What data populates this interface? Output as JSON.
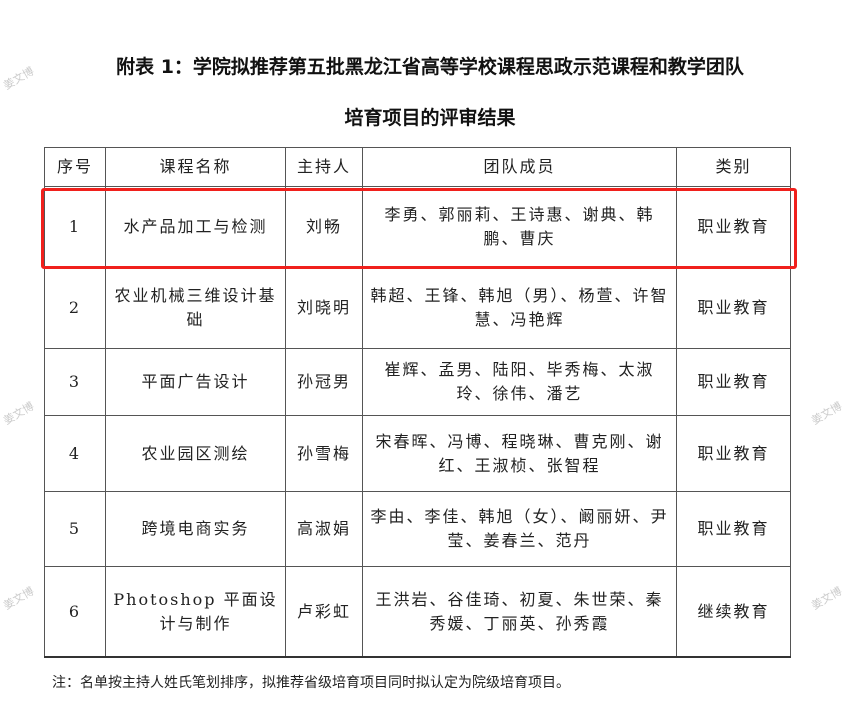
{
  "title_line1": "附表 1：学院拟推荐第五批黑龙江省高等学校课程思政示范课程和教学团队",
  "title_line2": "培育项目的评审结果",
  "table": {
    "headers": [
      "序号",
      "课程名称",
      "主持人",
      "团队成员",
      "类别"
    ],
    "rows": [
      {
        "no": "1",
        "course": "水产品加工与检测",
        "host": "刘畅",
        "members": "李勇、郭丽莉、王诗惠、谢典、韩鹏、曹庆",
        "type": "职业教育",
        "highlighted": true
      },
      {
        "no": "2",
        "course": "农业机械三维设计基础",
        "host": "刘晓明",
        "members": "韩超、王锋、韩旭（男）、杨萱、许智慧、冯艳辉",
        "type": "职业教育"
      },
      {
        "no": "3",
        "course": "平面广告设计",
        "host": "孙冠男",
        "members": "崔辉、孟男、陆阳、毕秀梅、太淑玲、徐伟、潘艺",
        "type": "职业教育"
      },
      {
        "no": "4",
        "course": "农业园区测绘",
        "host": "孙雪梅",
        "members": "宋春晖、冯博、程晓琳、曹克刚、谢红、王淑桢、张智程",
        "type": "职业教育"
      },
      {
        "no": "5",
        "course": "跨境电商实务",
        "host": "高淑娟",
        "members": "李由、李佳、韩旭（女）、阚丽妍、尹莹、姜春兰、范丹",
        "type": "职业教育"
      },
      {
        "no": "6",
        "course": "Photoshop 平面设计与制作",
        "host": "卢彩虹",
        "members": "王洪岩、谷佳琦、初夏、朱世荣、秦秀媛、丁丽英、孙秀霞",
        "type": "继续教育"
      }
    ]
  },
  "note": "注：名单按主持人姓氏笔划排序，拟推荐省级培育项目同时拟认定为院级培育项目。",
  "watermark": "姜文博",
  "highlight_color": "#f0201c"
}
